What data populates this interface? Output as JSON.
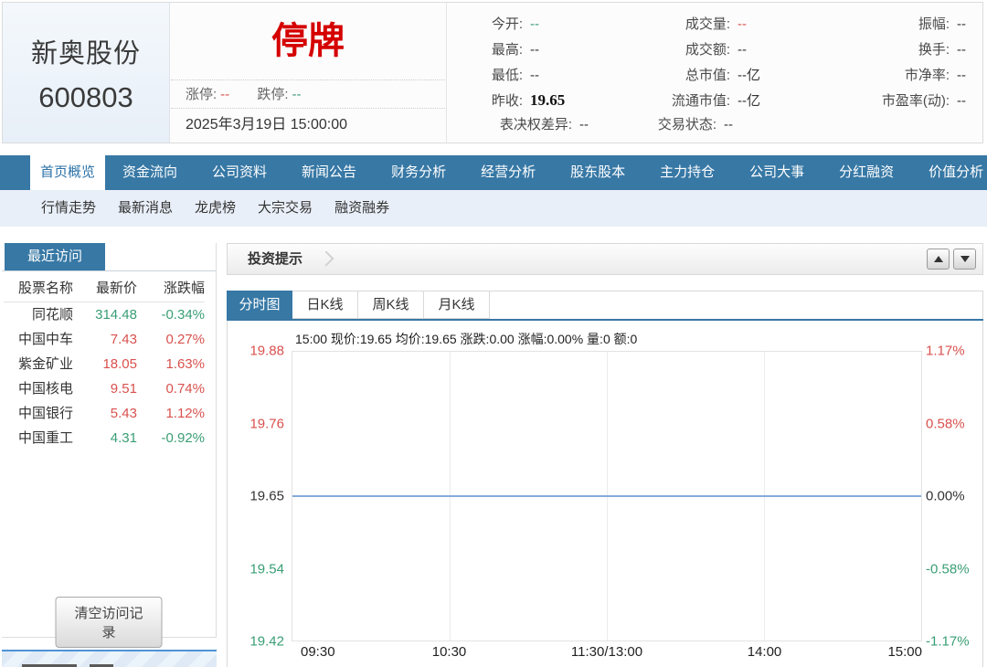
{
  "header": {
    "stock_name": "新奥股份",
    "stock_code": "600803",
    "trading_status": "停牌",
    "limit_up": {
      "label": "涨停:",
      "value": "--"
    },
    "limit_down": {
      "label": "跌停:",
      "value": "--"
    },
    "datetime": "2025年3月19日 15:00:00",
    "quotes": [
      {
        "label": "今开:",
        "value": "--",
        "tone": "down"
      },
      {
        "label": "成交量:",
        "value": "--",
        "tone": "up"
      },
      {
        "label": "振幅:",
        "value": "--",
        "tone": "dark"
      },
      {
        "label": "最高:",
        "value": "--",
        "tone": "dark"
      },
      {
        "label": "成交额:",
        "value": "--",
        "tone": "dark"
      },
      {
        "label": "换手:",
        "value": "--",
        "tone": "dark"
      },
      {
        "label": "最低:",
        "value": "--",
        "tone": "dark"
      },
      {
        "label": "总市值:",
        "value": "--亿",
        "tone": "dark"
      },
      {
        "label": "市净率:",
        "value": "--",
        "tone": "dark"
      },
      {
        "label": "昨收:",
        "value": "19.65",
        "tone": "bold"
      },
      {
        "label": "流通市值:",
        "value": "--亿",
        "tone": "dark"
      },
      {
        "label": "市盈率(动):",
        "value": "--",
        "tone": "dark"
      }
    ],
    "extra": [
      {
        "label": "表决权差异:",
        "value": "--"
      },
      {
        "label": "交易状态:",
        "value": "--"
      }
    ]
  },
  "nav": {
    "active": "首页概览",
    "items": [
      "首页概览",
      "资金流向",
      "公司资料",
      "新闻公告",
      "财务分析",
      "经营分析",
      "股东股本",
      "主力持仓",
      "公司大事",
      "分红融资",
      "价值分析"
    ]
  },
  "subnav": {
    "items": [
      "行情走势",
      "最新消息",
      "龙虎榜",
      "大宗交易",
      "融资融券"
    ]
  },
  "sidebar": {
    "tab": "最近访问",
    "headers": [
      "股票名称",
      "最新价",
      "涨跌幅"
    ],
    "rows": [
      {
        "name": "同花顺",
        "price": "314.48",
        "change": "-0.34%",
        "tone": "down"
      },
      {
        "name": "中国中车",
        "price": "7.43",
        "change": "0.27%",
        "tone": "up"
      },
      {
        "name": "紫金矿业",
        "price": "18.05",
        "change": "1.63%",
        "tone": "up"
      },
      {
        "name": "中国核电",
        "price": "9.51",
        "change": "0.74%",
        "tone": "up"
      },
      {
        "name": "中国银行",
        "price": "5.43",
        "change": "1.12%",
        "tone": "up"
      },
      {
        "name": "中国重工",
        "price": "4.31",
        "change": "-0.92%",
        "tone": "down"
      }
    ],
    "clear_button": "清空访问记录"
  },
  "main": {
    "panel_title": "投资提示",
    "tabs": {
      "active": "分时图",
      "items": [
        "分时图",
        "日K线",
        "周K线",
        "月K线"
      ]
    },
    "info_line": "15:00 现价:19.65 均价:19.65 涨跌:0.00 涨幅:0.00% 量:0 额:0"
  },
  "chart_data": {
    "type": "line",
    "title": "分时图",
    "x": [
      "09:30",
      "10:30",
      "11:30/13:00",
      "14:00",
      "15:00"
    ],
    "series": [
      {
        "name": "现价",
        "values": [
          19.65,
          19.65,
          19.65,
          19.65,
          19.65
        ]
      }
    ],
    "prev_close": 19.65,
    "ylim": [
      19.42,
      19.88
    ],
    "y_left_ticks": [
      {
        "text": "19.88",
        "tone": "up"
      },
      {
        "text": "19.76",
        "tone": "up"
      },
      {
        "text": "19.65",
        "tone": "dark"
      },
      {
        "text": "19.54",
        "tone": "down"
      },
      {
        "text": "19.42",
        "tone": "down"
      }
    ],
    "y_right_ticks": [
      {
        "text": "1.17%",
        "tone": "up"
      },
      {
        "text": "0.58%",
        "tone": "up"
      },
      {
        "text": "0.00%",
        "tone": "dark"
      },
      {
        "text": "-0.58%",
        "tone": "down"
      },
      {
        "text": "-1.17%",
        "tone": "down"
      }
    ],
    "grid": "vertical-only",
    "legend": "none"
  },
  "colors": {
    "accent_blue": "#3778a5",
    "up_red": "#d9514e",
    "down_green": "#3a9e75",
    "status_red": "#d50000",
    "price_line_blue": "#85abdb",
    "subnav_bg": "#e9eff8"
  }
}
